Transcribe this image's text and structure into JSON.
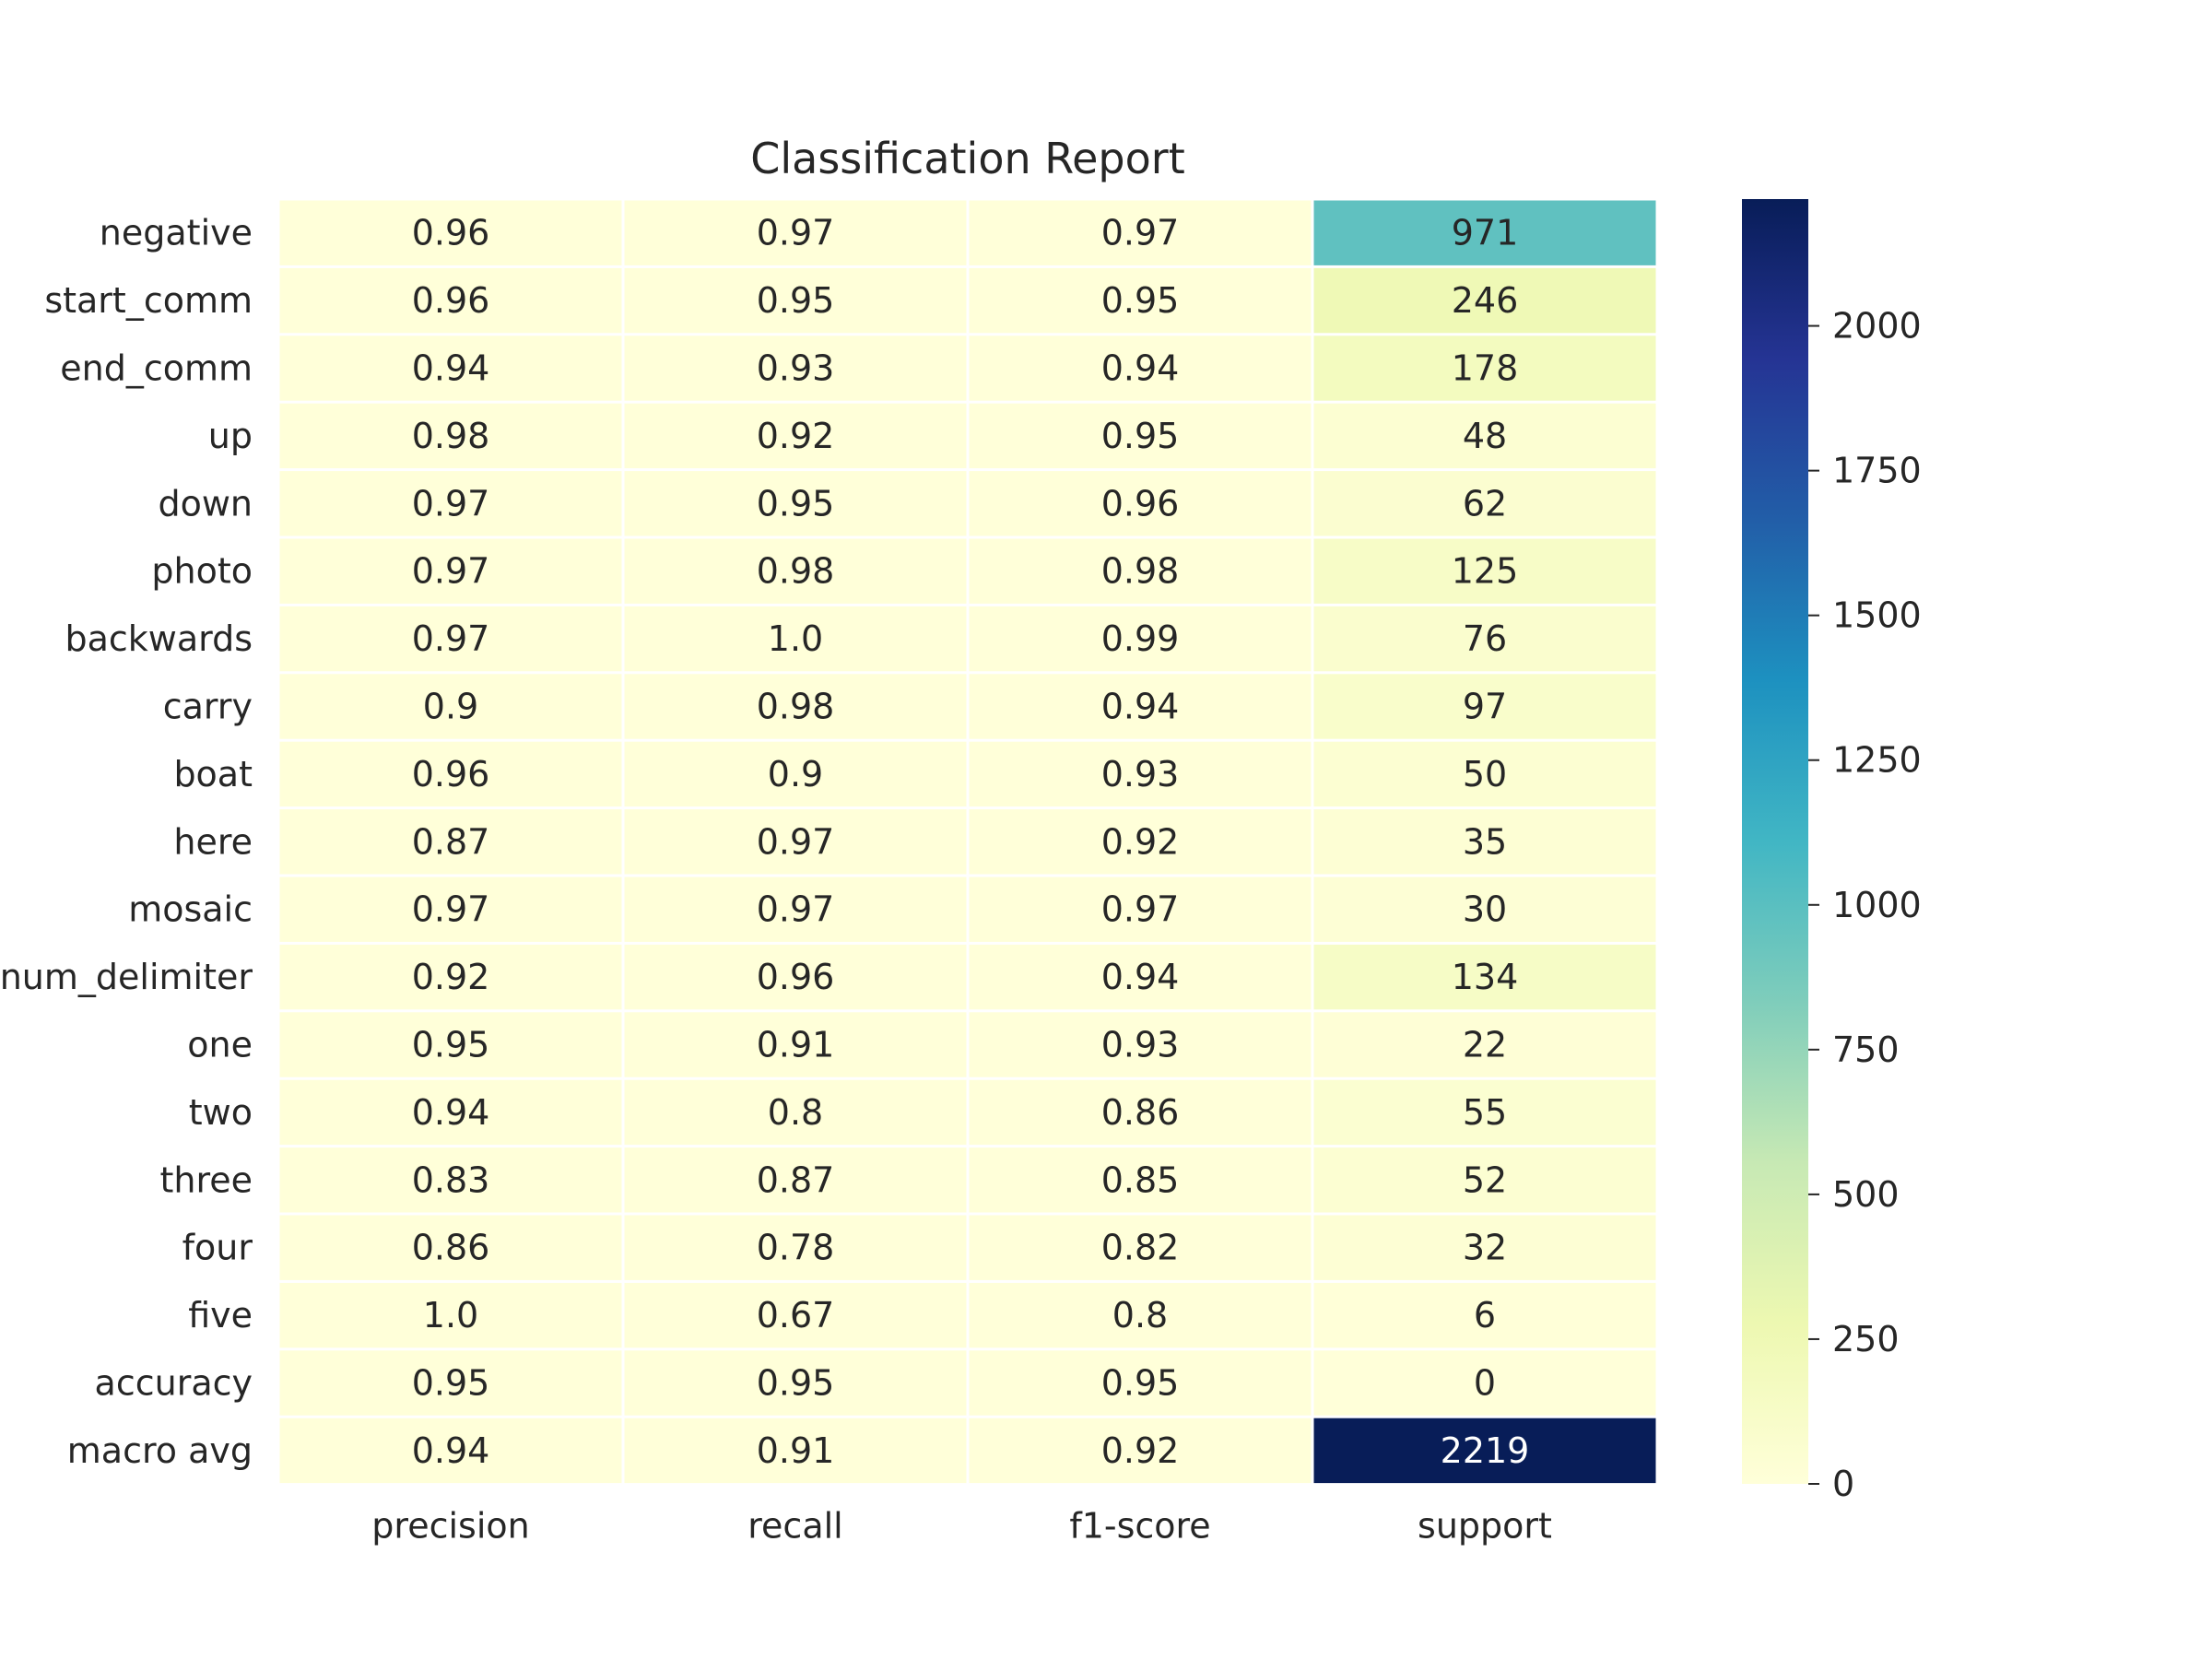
{
  "chart_data": {
    "type": "heatmap",
    "title": "Classification Report",
    "rows": [
      "negative",
      "start_comm",
      "end_comm",
      "up",
      "down",
      "photo",
      "backwards",
      "carry",
      "boat",
      "here",
      "mosaic",
      "num_delimiter",
      "one",
      "two",
      "three",
      "four",
      "five",
      "accuracy",
      "macro avg"
    ],
    "columns": [
      "precision",
      "recall",
      "f1-score",
      "support"
    ],
    "values": [
      [
        "0.96",
        "0.97",
        "0.97",
        "971"
      ],
      [
        "0.96",
        "0.95",
        "0.95",
        "246"
      ],
      [
        "0.94",
        "0.93",
        "0.94",
        "178"
      ],
      [
        "0.98",
        "0.92",
        "0.95",
        "48"
      ],
      [
        "0.97",
        "0.95",
        "0.96",
        "62"
      ],
      [
        "0.97",
        "0.98",
        "0.98",
        "125"
      ],
      [
        "0.97",
        "1.0",
        "0.99",
        "76"
      ],
      [
        "0.9",
        "0.98",
        "0.94",
        "97"
      ],
      [
        "0.96",
        "0.9",
        "0.93",
        "50"
      ],
      [
        "0.87",
        "0.97",
        "0.92",
        "35"
      ],
      [
        "0.97",
        "0.97",
        "0.97",
        "30"
      ],
      [
        "0.92",
        "0.96",
        "0.94",
        "134"
      ],
      [
        "0.95",
        "0.91",
        "0.93",
        "22"
      ],
      [
        "0.94",
        "0.8",
        "0.86",
        "55"
      ],
      [
        "0.83",
        "0.87",
        "0.85",
        "52"
      ],
      [
        "0.86",
        "0.78",
        "0.82",
        "32"
      ],
      [
        "1.0",
        "0.67",
        "0.8",
        "6"
      ],
      [
        "0.95",
        "0.95",
        "0.95",
        "0"
      ],
      [
        "0.94",
        "0.91",
        "0.92",
        "2219"
      ]
    ],
    "colorbar": {
      "colormap": "YlGnBu",
      "range": [
        0,
        2219
      ],
      "ticks": [
        0,
        250,
        500,
        750,
        1000,
        1250,
        1500,
        1750,
        2000
      ]
    },
    "grid": false
  }
}
